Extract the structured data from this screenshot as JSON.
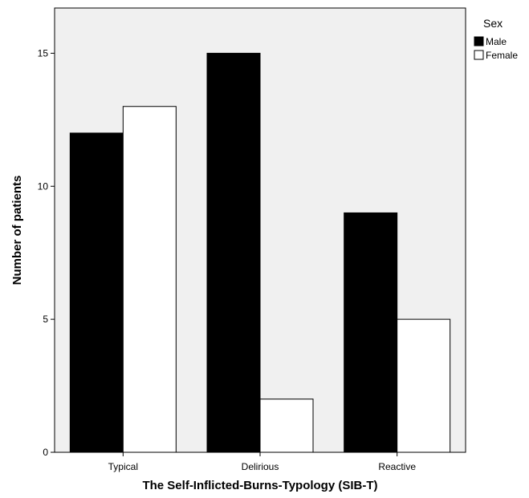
{
  "chart_data": {
    "type": "bar",
    "categories": [
      "Typical",
      "Delirious",
      "Reactive"
    ],
    "series": [
      {
        "name": "Male",
        "values": [
          12,
          15,
          9
        ],
        "color": "#000000"
      },
      {
        "name": "Female",
        "values": [
          13,
          2,
          5
        ],
        "color": "#ffffff"
      }
    ],
    "xlabel": "The Self-Inflicted-Burns-Typology (SIB-T)",
    "ylabel": "Number of patients",
    "ylim": [
      0,
      16.7
    ],
    "yticks": [
      0,
      5,
      10,
      15
    ],
    "legend": {
      "title": "Sex",
      "placement": "top-right"
    },
    "plot_background": "#f0f0f0",
    "grid": false
  }
}
